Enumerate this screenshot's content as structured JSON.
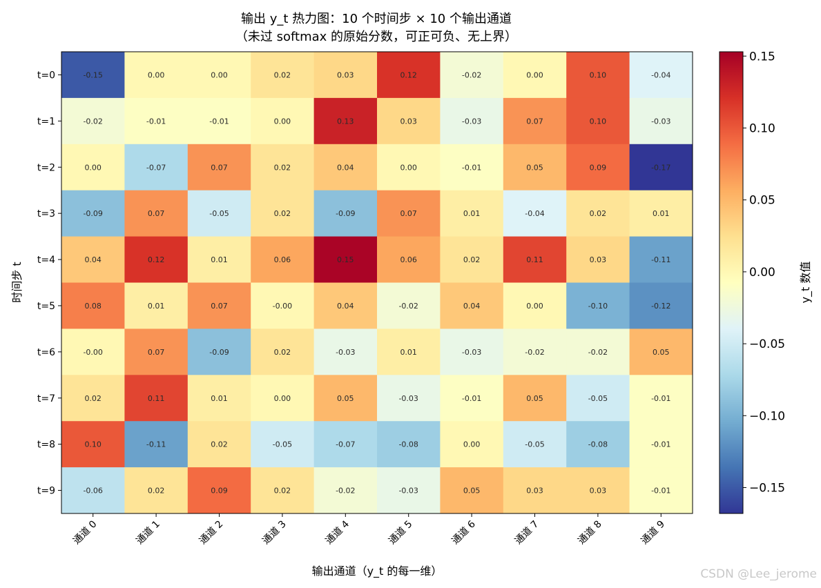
{
  "chart_data": {
    "type": "heatmap",
    "title": [
      "输出 y_t 热力图：10 个时间步 × 10 个输出通道",
      "（未过 softmax 的原始分数，可正可负、无上界）"
    ],
    "xlabel": "输出通道（y_t 的每一维）",
    "ylabel": "时间步 t",
    "x_categories": [
      "通道 0",
      "通道 1",
      "通道 2",
      "通道 3",
      "通道 4",
      "通道 5",
      "通道 6",
      "通道 7",
      "通道 8",
      "通道 9"
    ],
    "y_categories": [
      "t=0",
      "t=1",
      "t=2",
      "t=3",
      "t=4",
      "t=5",
      "t=6",
      "t=7",
      "t=8",
      "t=9"
    ],
    "values": [
      [
        -0.15,
        0.0,
        0.0,
        0.02,
        0.03,
        0.12,
        -0.02,
        0.0,
        0.1,
        -0.04
      ],
      [
        -0.02,
        -0.01,
        -0.01,
        0.0,
        0.13,
        0.03,
        -0.03,
        0.07,
        0.1,
        -0.03
      ],
      [
        0.0,
        -0.07,
        0.07,
        0.02,
        0.04,
        0.0,
        -0.01,
        0.05,
        0.09,
        -0.17
      ],
      [
        -0.09,
        0.07,
        -0.05,
        0.02,
        -0.09,
        0.07,
        0.01,
        -0.04,
        0.02,
        0.01
      ],
      [
        0.04,
        0.12,
        0.01,
        0.06,
        0.15,
        0.06,
        0.02,
        0.11,
        0.03,
        -0.11
      ],
      [
        0.08,
        0.01,
        0.07,
        -0.0,
        0.04,
        -0.02,
        0.04,
        0.0,
        -0.1,
        -0.12
      ],
      [
        -0.0,
        0.07,
        -0.09,
        0.02,
        -0.03,
        0.01,
        -0.03,
        -0.02,
        -0.02,
        0.05
      ],
      [
        0.02,
        0.11,
        0.01,
        0.0,
        0.05,
        -0.03,
        -0.01,
        0.05,
        -0.05,
        -0.01
      ],
      [
        0.1,
        -0.11,
        0.02,
        -0.05,
        -0.07,
        -0.08,
        0.0,
        -0.05,
        -0.08,
        -0.01
      ],
      [
        -0.06,
        0.02,
        0.09,
        0.02,
        -0.02,
        -0.03,
        0.05,
        0.03,
        0.03,
        -0.01
      ]
    ],
    "value_labels": [
      [
        "-0.15",
        "0.00",
        "0.00",
        "0.02",
        "0.03",
        "0.12",
        "-0.02",
        "0.00",
        "0.10",
        "-0.04"
      ],
      [
        "-0.02",
        "-0.01",
        "-0.01",
        "0.00",
        "0.13",
        "0.03",
        "-0.03",
        "0.07",
        "0.10",
        "-0.03"
      ],
      [
        "0.00",
        "-0.07",
        "0.07",
        "0.02",
        "0.04",
        "0.00",
        "-0.01",
        "0.05",
        "0.09",
        "-0.17"
      ],
      [
        "-0.09",
        "0.07",
        "-0.05",
        "0.02",
        "-0.09",
        "0.07",
        "0.01",
        "-0.04",
        "0.02",
        "0.01"
      ],
      [
        "0.04",
        "0.12",
        "0.01",
        "0.06",
        "0.15",
        "0.06",
        "0.02",
        "0.11",
        "0.03",
        "-0.11"
      ],
      [
        "0.08",
        "0.01",
        "0.07",
        "-0.00",
        "0.04",
        "-0.02",
        "0.04",
        "0.00",
        "-0.10",
        "-0.12"
      ],
      [
        "-0.00",
        "0.07",
        "-0.09",
        "0.02",
        "-0.03",
        "0.01",
        "-0.03",
        "-0.02",
        "-0.02",
        "0.05"
      ],
      [
        "0.02",
        "0.11",
        "0.01",
        "0.00",
        "0.05",
        "-0.03",
        "-0.01",
        "0.05",
        "-0.05",
        "-0.01"
      ],
      [
        "0.10",
        "-0.11",
        "0.02",
        "-0.05",
        "-0.07",
        "-0.08",
        "0.00",
        "-0.05",
        "-0.08",
        "-0.01"
      ],
      [
        "-0.06",
        "0.02",
        "0.09",
        "0.02",
        "-0.02",
        "-0.03",
        "0.05",
        "0.03",
        "0.03",
        "-0.01"
      ]
    ],
    "colormap": "RdYlBu_r",
    "colorbar": {
      "label": "y_t 数值",
      "range": [
        -0.168,
        0.153
      ],
      "ticks": [
        -0.15,
        -0.1,
        -0.05,
        0.0,
        0.05,
        0.1,
        0.15
      ],
      "tick_labels": [
        "−0.15",
        "−0.10",
        "−0.05",
        "0.00",
        "0.05",
        "0.10",
        "0.15"
      ],
      "placement": "right"
    },
    "colormap_stops": [
      "#313695",
      "#4575b4",
      "#74add1",
      "#abd9e9",
      "#e0f3f8",
      "#ffffbf",
      "#fee090",
      "#fdae61",
      "#f46d43",
      "#d73027",
      "#a50026"
    ],
    "grid": false
  },
  "watermark": "CSDN @Lee_jerome"
}
